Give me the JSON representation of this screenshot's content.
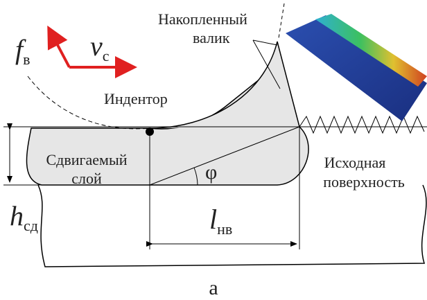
{
  "labels": {
    "ridge": {
      "line1": "Накопленный",
      "line2": "валик"
    },
    "force": {
      "symbol": "f",
      "subscript": "в"
    },
    "velocity": {
      "symbol": "v",
      "subscript": "с"
    },
    "indenter": "Индентор",
    "shear_layer": {
      "line1": "Сдвигаемый",
      "line2": "слой"
    },
    "angle": "φ",
    "surface": {
      "line1": "Исходная",
      "line2": "поверхность"
    },
    "layer_height": {
      "symbol": "h",
      "subscript": "сд"
    },
    "ridge_length": {
      "symbol": "l",
      "subscript": "нв"
    }
  },
  "caption": "а"
}
